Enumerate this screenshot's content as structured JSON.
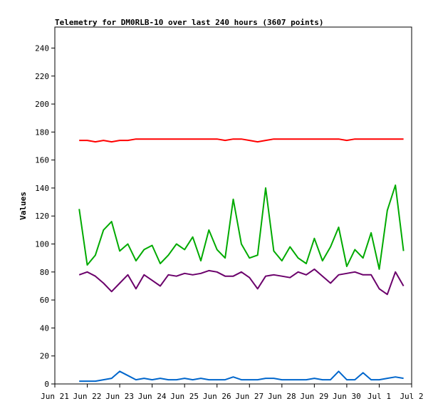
{
  "chart_data": {
    "type": "line",
    "title": "Telemetry for DM0RLB-10 over last 240 hours (3607 points)",
    "xlabel": "",
    "ylabel": "Values",
    "xlim": [
      "Jun 21",
      "Jul 2"
    ],
    "ylim": [
      0,
      255
    ],
    "x_ticks": [
      "Jun 21",
      "Jun 22",
      "Jun 23",
      "Jun 24",
      "Jun 25",
      "Jun 26",
      "Jun 27",
      "Jun 28",
      "Jun 29",
      "Jun 30",
      "Jul 1",
      "Jul 2"
    ],
    "y_ticks": [
      0,
      20,
      40,
      60,
      80,
      100,
      120,
      140,
      160,
      180,
      200,
      220,
      240
    ],
    "grid": false,
    "legend": "none",
    "x": [
      "Jun 21 18:00",
      "Jun 22 00:00",
      "Jun 22 06:00",
      "Jun 22 12:00",
      "Jun 22 18:00",
      "Jun 23 00:00",
      "Jun 23 06:00",
      "Jun 23 12:00",
      "Jun 23 18:00",
      "Jun 24 00:00",
      "Jun 24 06:00",
      "Jun 24 12:00",
      "Jun 24 18:00",
      "Jun 25 00:00",
      "Jun 25 06:00",
      "Jun 25 12:00",
      "Jun 25 18:00",
      "Jun 26 00:00",
      "Jun 26 06:00",
      "Jun 26 12:00",
      "Jun 26 18:00",
      "Jun 27 00:00",
      "Jun 27 06:00",
      "Jun 27 12:00",
      "Jun 27 18:00",
      "Jun 28 00:00",
      "Jun 28 06:00",
      "Jun 28 12:00",
      "Jun 28 18:00",
      "Jun 29 00:00",
      "Jun 29 06:00",
      "Jun 29 12:00",
      "Jun 29 18:00",
      "Jun 30 00:00",
      "Jun 30 06:00",
      "Jun 30 12:00",
      "Jun 30 18:00",
      "Jul 1 00:00",
      "Jul 1 06:00",
      "Jul 1 12:00",
      "Jul 1 18:00"
    ],
    "series": [
      {
        "color": "#ff0000",
        "values": [
          174,
          174,
          173,
          174,
          173,
          174,
          174,
          175,
          175,
          175,
          175,
          175,
          175,
          175,
          175,
          175,
          175,
          175,
          174,
          175,
          175,
          174,
          173,
          174,
          175,
          175,
          175,
          175,
          175,
          175,
          175,
          175,
          175,
          174,
          175,
          175,
          175,
          175,
          175,
          175,
          175
        ]
      },
      {
        "color": "#00aa00",
        "values": [
          125,
          85,
          92,
          110,
          116,
          95,
          100,
          88,
          96,
          99,
          86,
          92,
          100,
          96,
          105,
          88,
          110,
          96,
          90,
          132,
          100,
          90,
          92,
          140,
          95,
          88,
          98,
          90,
          86,
          104,
          88,
          98,
          112,
          84,
          96,
          90,
          108,
          82,
          124,
          142,
          95
        ]
      },
      {
        "color": "#6b006b",
        "values": [
          78,
          80,
          77,
          72,
          66,
          72,
          78,
          68,
          78,
          74,
          70,
          78,
          77,
          79,
          78,
          79,
          81,
          80,
          77,
          77,
          80,
          76,
          68,
          77,
          78,
          77,
          76,
          80,
          78,
          82,
          77,
          72,
          78,
          79,
          80,
          78,
          78,
          68,
          64,
          80,
          70
        ]
      },
      {
        "color": "#0066cc",
        "values": [
          2,
          2,
          2,
          3,
          4,
          9,
          6,
          3,
          4,
          3,
          4,
          3,
          3,
          4,
          3,
          4,
          3,
          3,
          3,
          5,
          3,
          3,
          3,
          4,
          4,
          3,
          3,
          3,
          3,
          4,
          3,
          3,
          9,
          3,
          3,
          8,
          3,
          3,
          4,
          5,
          4
        ]
      }
    ]
  }
}
